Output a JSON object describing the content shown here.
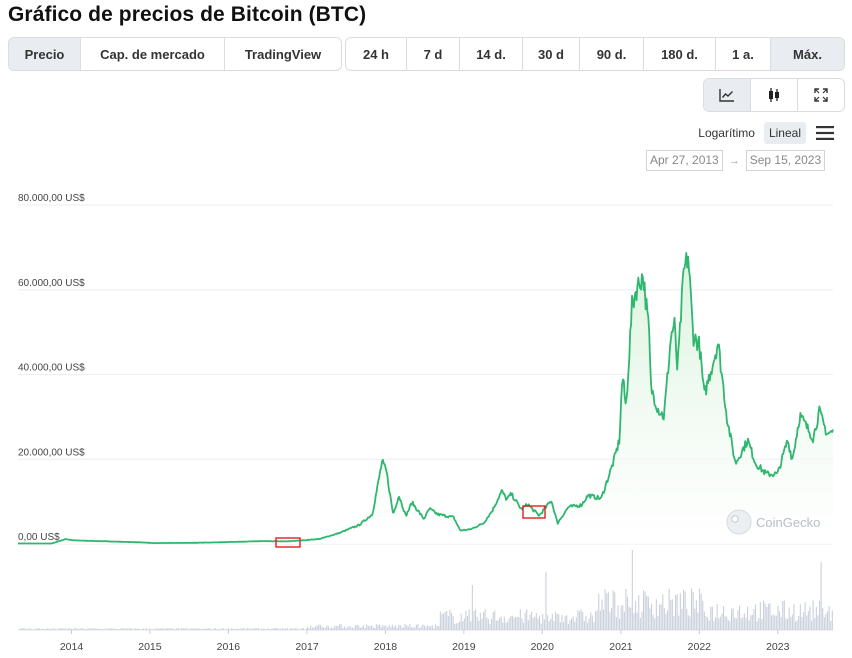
{
  "header": {
    "title": "Gráfico de precios de Bitcoin (BTC)"
  },
  "metric_tabs": [
    {
      "label": "Precio",
      "active": true
    },
    {
      "label": "Cap. de mercado",
      "active": false
    },
    {
      "label": "TradingView",
      "active": false
    }
  ],
  "range_tabs": [
    {
      "label": "24 h",
      "active": false
    },
    {
      "label": "7 d",
      "active": false
    },
    {
      "label": "14 d.",
      "active": false
    },
    {
      "label": "30 d",
      "active": false
    },
    {
      "label": "90 d.",
      "active": false
    },
    {
      "label": "180 d.",
      "active": false
    },
    {
      "label": "1 a.",
      "active": false
    },
    {
      "label": "Máx.",
      "active": true
    }
  ],
  "view_buttons": [
    {
      "icon": "line-chart-icon",
      "active": true
    },
    {
      "icon": "candlestick-icon",
      "active": false
    },
    {
      "icon": "fullscreen-icon",
      "active": false
    }
  ],
  "scale": {
    "log_label": "Logarítimo",
    "linear_label": "Lineal",
    "active": "linear"
  },
  "date_range": {
    "from": "Apr 27, 2013",
    "arrow": "→",
    "to": "Sep 15, 2023"
  },
  "watermark": "CoinGecko",
  "colors": {
    "line": "#2fb66f",
    "fill_top": "#d9f2dc",
    "volume": "#c9d0dc",
    "highlight_box": "#e02020"
  },
  "chart_data": {
    "type": "area",
    "title": "",
    "xlabel": "",
    "ylabel": "",
    "ylim": [
      0,
      80000
    ],
    "y_ticks": [
      {
        "value": 80000,
        "label": "80.000,00 US$"
      },
      {
        "value": 60000,
        "label": "60.000,00 US$"
      },
      {
        "value": 40000,
        "label": "40.000,00 US$"
      },
      {
        "value": 20000,
        "label": "20.000,00 US$"
      },
      {
        "value": 0,
        "label": "0,00 US$"
      }
    ],
    "x_ticks": [
      "2014",
      "2015",
      "2016",
      "2017",
      "2018",
      "2019",
      "2020",
      "2021",
      "2022",
      "2023"
    ],
    "xlim": [
      "2013-04-27",
      "2023-09-15"
    ],
    "grid": "horizontal",
    "legend": "none",
    "series": [
      {
        "unit": "US$",
        "points": [
          [
            "2013-04-27",
            130
          ],
          [
            "2013-10-01",
            120
          ],
          [
            "2013-12-04",
            1150
          ],
          [
            "2014-01-15",
            850
          ],
          [
            "2014-06-01",
            650
          ],
          [
            "2014-12-01",
            370
          ],
          [
            "2015-01-15",
            220
          ],
          [
            "2015-07-01",
            260
          ],
          [
            "2015-12-01",
            420
          ],
          [
            "2016-06-01",
            670
          ],
          [
            "2016-10-01",
            620
          ],
          [
            "2016-12-20",
            900
          ],
          [
            "2017-03-01",
            1200
          ],
          [
            "2017-06-01",
            2600
          ],
          [
            "2017-09-01",
            4500
          ],
          [
            "2017-11-01",
            7000
          ],
          [
            "2017-12-17",
            19500
          ],
          [
            "2018-01-06",
            17000
          ],
          [
            "2018-02-06",
            7000
          ],
          [
            "2018-03-05",
            11500
          ],
          [
            "2018-04-06",
            6600
          ],
          [
            "2018-05-05",
            9800
          ],
          [
            "2018-06-29",
            5900
          ],
          [
            "2018-07-25",
            8300
          ],
          [
            "2018-09-01",
            7000
          ],
          [
            "2018-11-14",
            6300
          ],
          [
            "2018-12-15",
            3200
          ],
          [
            "2019-02-01",
            3450
          ],
          [
            "2019-04-02",
            4900
          ],
          [
            "2019-05-15",
            8000
          ],
          [
            "2019-06-26",
            12500
          ],
          [
            "2019-07-20",
            10500
          ],
          [
            "2019-08-10",
            11800
          ],
          [
            "2019-09-25",
            8200
          ],
          [
            "2019-10-26",
            9400
          ],
          [
            "2019-11-20",
            8000
          ],
          [
            "2019-12-18",
            6700
          ],
          [
            "2020-02-12",
            10300
          ],
          [
            "2020-03-12",
            4900
          ],
          [
            "2020-05-01",
            8700
          ],
          [
            "2020-07-01",
            9200
          ],
          [
            "2020-08-01",
            11500
          ],
          [
            "2020-10-01",
            10700
          ],
          [
            "2020-11-25",
            19000
          ],
          [
            "2020-12-25",
            24500
          ],
          [
            "2021-01-08",
            40000
          ],
          [
            "2021-01-25",
            32000
          ],
          [
            "2021-02-21",
            56000
          ],
          [
            "2021-03-13",
            60000
          ],
          [
            "2021-04-14",
            63500
          ],
          [
            "2021-05-12",
            50000
          ],
          [
            "2021-05-20",
            37000
          ],
          [
            "2021-06-22",
            32000
          ],
          [
            "2021-07-20",
            30000
          ],
          [
            "2021-08-22",
            49000
          ],
          [
            "2021-09-07",
            52000
          ],
          [
            "2021-09-21",
            41000
          ],
          [
            "2021-10-20",
            64000
          ],
          [
            "2021-11-10",
            68000
          ],
          [
            "2021-12-04",
            49000
          ],
          [
            "2022-01-01",
            47000
          ],
          [
            "2022-01-24",
            35000
          ],
          [
            "2022-03-29",
            47500
          ],
          [
            "2022-05-12",
            29000
          ],
          [
            "2022-06-18",
            19000
          ],
          [
            "2022-08-14",
            24500
          ],
          [
            "2022-09-20",
            19000
          ],
          [
            "2022-11-09",
            16500
          ],
          [
            "2022-12-31",
            16500
          ],
          [
            "2023-02-16",
            24500
          ],
          [
            "2023-03-10",
            20000
          ],
          [
            "2023-04-14",
            30400
          ],
          [
            "2023-06-15",
            25000
          ],
          [
            "2023-07-13",
            31300
          ],
          [
            "2023-08-18",
            26000
          ],
          [
            "2023-09-15",
            26500
          ]
        ]
      }
    ]
  }
}
